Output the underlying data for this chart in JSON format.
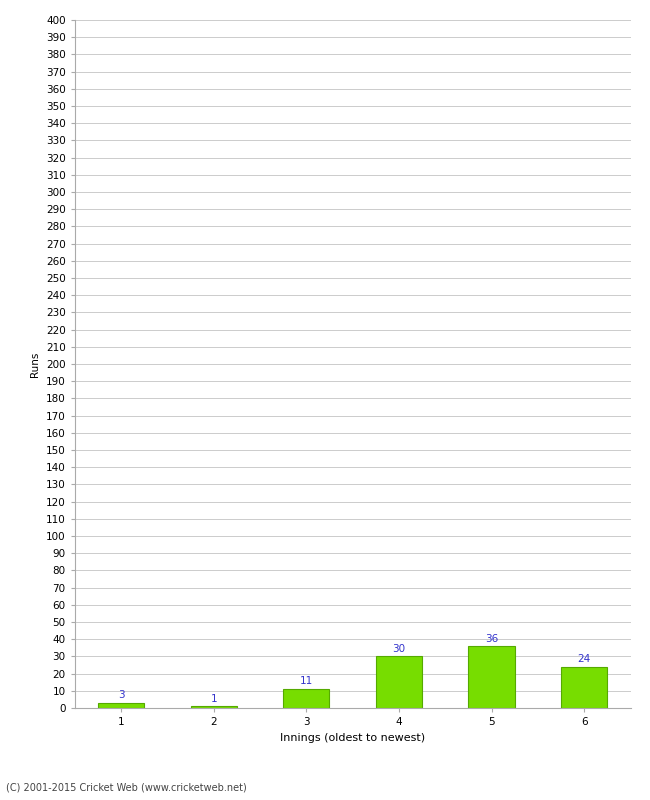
{
  "xlabel": "Innings (oldest to newest)",
  "ylabel": "Runs",
  "categories": [
    "1",
    "2",
    "3",
    "4",
    "5",
    "6"
  ],
  "values": [
    3,
    1,
    11,
    30,
    36,
    24
  ],
  "bar_color": "#77dd00",
  "bar_edge_color": "#55aa00",
  "label_color": "#3333cc",
  "ylim": [
    0,
    400
  ],
  "ytick_step": 10,
  "background_color": "#ffffff",
  "footer_text": "(C) 2001-2015 Cricket Web (www.cricketweb.net)",
  "grid_color": "#cccccc",
  "label_fontsize": 7.5,
  "axis_tick_fontsize": 7.5,
  "ylabel_fontsize": 7.5,
  "xlabel_fontsize": 8
}
